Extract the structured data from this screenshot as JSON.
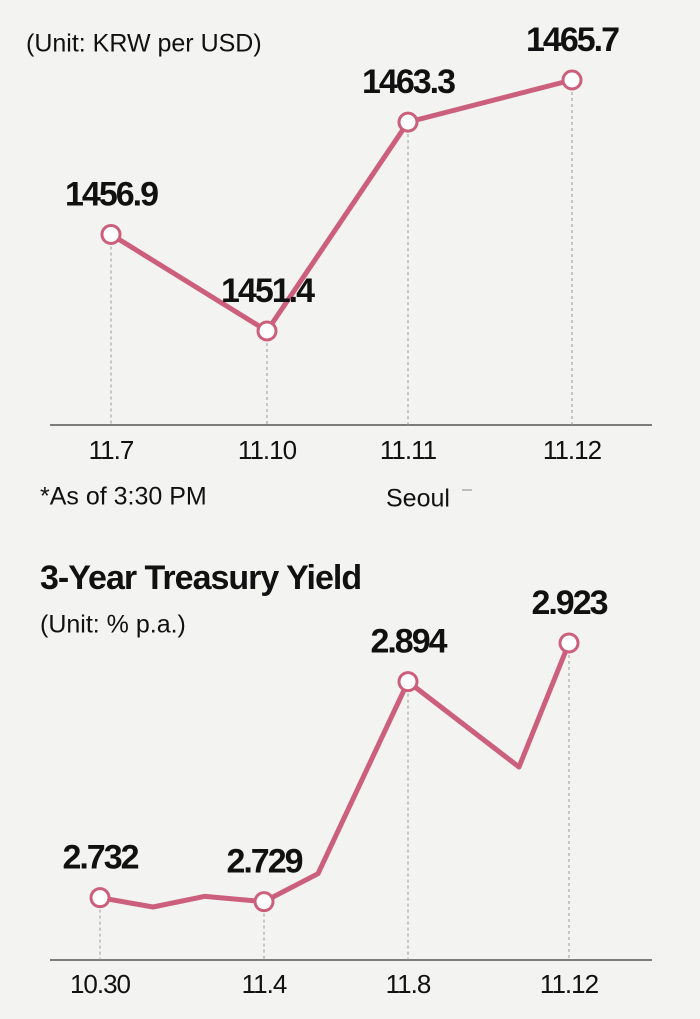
{
  "chart_data": [
    {
      "type": "line",
      "subtitle": "(Unit: KRW per USD)",
      "categories": [
        "11.7",
        "11.10",
        "11.11",
        "11.12"
      ],
      "values": [
        1456.9,
        1451.4,
        1463.3,
        1465.7
      ],
      "color": "#cc5f7c",
      "note": "*As of 3:30 PM",
      "source": "Seoul"
    },
    {
      "type": "line",
      "title": "3-Year Treasury Yield",
      "subtitle": "(Unit: % p.a.)",
      "categories": [
        "10.30",
        null,
        null,
        "11.4",
        null,
        "11.8",
        null,
        "11.12"
      ],
      "values": [
        2.732,
        2.725,
        2.733,
        2.729,
        2.75,
        2.894,
        2.83,
        2.923
      ],
      "color": "#cc5f7c"
    }
  ]
}
